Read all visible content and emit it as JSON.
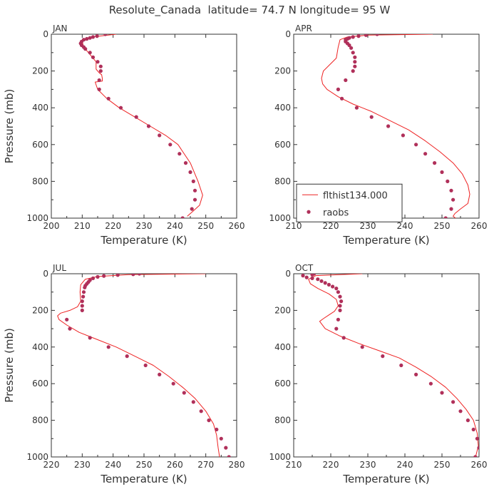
{
  "figure": {
    "title": "Resolute_Canada  latitude= 74.7 N longitude= 95 W",
    "legend": {
      "model_label": "flthist134.000",
      "obs_label": "raobs"
    },
    "colors": {
      "model": "#ee2222",
      "obs": "#b0305a",
      "axis": "#333333"
    }
  },
  "chart_data": [
    {
      "type": "line",
      "panel_label": "JAN",
      "xlabel": "Temperature (K)",
      "ylabel": "Pressure (mb)",
      "xlim": [
        200,
        260
      ],
      "xticks": [
        200,
        210,
        220,
        230,
        240,
        250,
        260
      ],
      "ylim": [
        1000,
        0
      ],
      "yticks": [
        0,
        200,
        400,
        600,
        800,
        1000
      ],
      "y_reversed": true,
      "series": [
        {
          "name": "flthist134.000",
          "style": "line",
          "x": [
            221.0,
            213.0,
            210.0,
            210.5,
            212.0,
            214.5,
            214.5,
            215.5,
            216.3,
            216.5,
            216.5,
            214.2,
            215.0,
            218.0,
            222.0,
            227.0,
            232.0,
            237.0,
            241.0,
            245.0,
            247.5,
            249.0,
            248.0,
            246.0,
            244.0
          ],
          "y": [
            0,
            15,
            40,
            70,
            100,
            150,
            190,
            210,
            220,
            240,
            255,
            260,
            300,
            350,
            400,
            450,
            500,
            550,
            600,
            700,
            800,
            875,
            930,
            960,
            990
          ]
        },
        {
          "name": "raobs",
          "style": "points",
          "x": [
            217.5,
            214.8,
            213.5,
            212.5,
            211.5,
            210.5,
            209.8,
            209.5,
            209.8,
            210.5,
            211.0,
            212.5,
            213.5,
            215.0,
            216.0,
            216.0,
            215.5,
            215.5,
            218.5,
            222.5,
            227.5,
            231.5,
            235.0,
            238.5,
            241.5,
            243.5,
            245.0,
            246.0,
            246.5,
            246.5,
            245.5,
            242.5
          ],
          "y": [
            0,
            10,
            15,
            20,
            25,
            30,
            40,
            50,
            60,
            70,
            80,
            100,
            125,
            150,
            175,
            200,
            250,
            300,
            350,
            400,
            450,
            500,
            550,
            600,
            650,
            700,
            750,
            800,
            850,
            900,
            950,
            1000
          ]
        }
      ]
    },
    {
      "type": "line",
      "panel_label": "APR",
      "xlabel": "Temperature (K)",
      "ylabel": "",
      "xlim": [
        210,
        260
      ],
      "xticks": [
        210,
        220,
        230,
        240,
        250,
        260
      ],
      "ylim": [
        1000,
        0
      ],
      "yticks": [
        0,
        200,
        400,
        600,
        800,
        1000
      ],
      "y_reversed": true,
      "series": [
        {
          "name": "flthist134.000",
          "style": "line",
          "x": [
            247.5,
            230.0,
            224.5,
            222.5,
            222.0,
            221.5,
            219.5,
            218.0,
            217.5,
            217.8,
            219.0,
            222.0,
            226.0,
            231.0,
            236.0,
            241.0,
            245.5,
            249.5,
            253.0,
            255.5,
            257.0,
            257.5,
            257.0,
            255.0,
            253.5,
            253.0,
            254.0
          ],
          "y": [
            0,
            5,
            15,
            30,
            70,
            130,
            170,
            200,
            240,
            270,
            300,
            340,
            380,
            420,
            470,
            520,
            580,
            640,
            700,
            760,
            820,
            870,
            920,
            950,
            975,
            990,
            1005
          ]
        },
        {
          "name": "raobs",
          "style": "points",
          "x": [
            232.5,
            229.5,
            227.5,
            226.0,
            225.0,
            224.5,
            224.0,
            224.0,
            224.5,
            225.0,
            225.5,
            226.0,
            226.5,
            226.5,
            226.5,
            226.0,
            224.0,
            222.0,
            223.0,
            227.0,
            231.0,
            235.5,
            239.5,
            243.0,
            245.5,
            248.0,
            250.0,
            251.5,
            252.5,
            253.0,
            252.5,
            251.0
          ],
          "y": [
            0,
            5,
            10,
            15,
            20,
            25,
            30,
            40,
            50,
            60,
            75,
            100,
            125,
            150,
            175,
            200,
            250,
            300,
            350,
            400,
            450,
            500,
            550,
            600,
            650,
            700,
            750,
            800,
            850,
            900,
            950,
            1000
          ]
        }
      ]
    },
    {
      "type": "line",
      "panel_label": "JUL",
      "xlabel": "Temperature (K)",
      "ylabel": "Pressure (mb)",
      "xlim": [
        220,
        280
      ],
      "xticks": [
        220,
        230,
        240,
        250,
        260,
        270,
        280
      ],
      "ylim": [
        1000,
        0
      ],
      "yticks": [
        0,
        200,
        400,
        600,
        800,
        1000
      ],
      "y_reversed": true,
      "series": [
        {
          "name": "flthist134.000",
          "style": "line",
          "x": [
            270.0,
            245.0,
            235.0,
            231.0,
            229.5,
            229.3,
            229.5,
            228.5,
            226.0,
            223.0,
            222.0,
            222.5,
            225.0,
            229.0,
            235.0,
            241.0,
            247.0,
            253.0,
            258.0,
            262.5,
            266.5,
            270.0,
            272.5,
            273.5,
            274.0,
            274.5
          ],
          "y": [
            0,
            5,
            15,
            30,
            60,
            100,
            150,
            180,
            200,
            215,
            230,
            250,
            280,
            320,
            360,
            400,
            450,
            500,
            560,
            620,
            680,
            750,
            820,
            880,
            950,
            1005
          ]
        },
        {
          "name": "raobs",
          "style": "points",
          "x": [
            248.5,
            246.5,
            241.5,
            237.0,
            235.0,
            233.5,
            232.5,
            232.0,
            231.5,
            231.0,
            230.8,
            230.5,
            230.3,
            230.0,
            230.0,
            230.0,
            225.0,
            226.0,
            232.5,
            238.5,
            244.5,
            250.5,
            255.0,
            259.5,
            263.0,
            266.0,
            268.5,
            271.0,
            273.5,
            275.0,
            276.5,
            277.5
          ],
          "y": [
            0,
            3,
            7,
            12,
            17,
            25,
            35,
            45,
            55,
            65,
            75,
            100,
            125,
            150,
            175,
            200,
            250,
            300,
            350,
            400,
            450,
            500,
            550,
            600,
            650,
            700,
            750,
            800,
            850,
            900,
            950,
            1000
          ]
        }
      ]
    },
    {
      "type": "line",
      "panel_label": "OCT",
      "xlabel": "Temperature (K)",
      "ylabel": "",
      "xlim": [
        210,
        260
      ],
      "xticks": [
        210,
        220,
        230,
        240,
        250,
        260
      ],
      "ylim": [
        1000,
        0
      ],
      "yticks": [
        0,
        200,
        400,
        600,
        800,
        1000
      ],
      "y_reversed": true,
      "series": [
        {
          "name": "flthist134.000",
          "style": "line",
          "x": [
            228.5,
            216.0,
            214.0,
            214.5,
            216.5,
            219.5,
            221.5,
            222.0,
            221.0,
            219.5,
            218.0,
            217.0,
            218.5,
            222.5,
            227.5,
            233.0,
            238.5,
            243.0,
            247.0,
            251.0,
            254.0,
            256.5,
            258.5,
            259.5,
            259.8,
            259.0
          ],
          "y": [
            0,
            10,
            30,
            55,
            80,
            110,
            140,
            175,
            205,
            225,
            245,
            260,
            300,
            340,
            380,
            420,
            460,
            510,
            560,
            620,
            680,
            740,
            800,
            870,
            940,
            1005
          ]
        },
        {
          "name": "raobs",
          "style": "points",
          "x": [
            215.5,
            215.0,
            212.5,
            213.5,
            215.0,
            216.5,
            217.5,
            218.5,
            219.5,
            220.5,
            221.5,
            222.0,
            222.5,
            222.8,
            222.5,
            222.5,
            222.0,
            221.5,
            223.5,
            228.5,
            234.0,
            239.0,
            243.0,
            247.0,
            250.0,
            253.0,
            255.0,
            257.0,
            258.5,
            259.5,
            260.0,
            259.0
          ],
          "y": [
            0,
            5,
            10,
            20,
            25,
            30,
            40,
            50,
            60,
            70,
            80,
            100,
            125,
            150,
            175,
            200,
            250,
            300,
            350,
            400,
            450,
            500,
            550,
            600,
            650,
            700,
            750,
            800,
            850,
            900,
            950,
            1000
          ]
        }
      ]
    }
  ]
}
